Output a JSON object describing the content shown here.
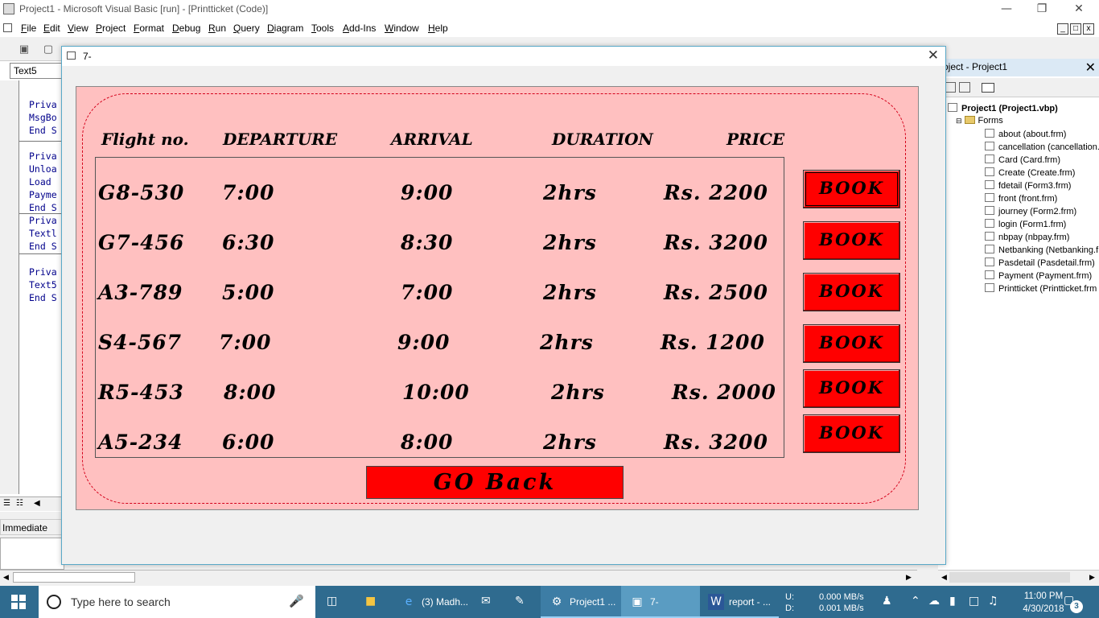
{
  "ide": {
    "title": "Project1 - Microsoft Visual Basic [run] - [Printticket (Code)]",
    "menu": [
      "File",
      "Edit",
      "View",
      "Project",
      "Format",
      "Debug",
      "Run",
      "Query",
      "Diagram",
      "Tools",
      "Add-Ins",
      "Window",
      "Help"
    ],
    "code_object_combo": "Text5",
    "code_lines": [
      "Priva",
      "MsgBo",
      "End S",
      "Priva",
      "Unloa",
      "Load",
      "Payme",
      "End S",
      "Priva",
      "Textl",
      "End S",
      "Priva",
      "Text5",
      "End S"
    ],
    "immediate_label": "Immediate"
  },
  "project_explorer": {
    "title": "oject - Project1",
    "root": "Project1 (Project1.vbp)",
    "folder": "Forms",
    "forms": [
      "about (about.frm)",
      "cancellation (cancellation.",
      "Card (Card.frm)",
      "Create (Create.frm)",
      "fdetail (Form3.frm)",
      "front (front.frm)",
      "journey (Form2.frm)",
      "login (Form1.frm)",
      "nbpay (nbpay.frm)",
      "Netbanking (Netbanking.f",
      "Pasdetail (Pasdetail.frm)",
      "Payment (Payment.frm)",
      "Printticket (Printticket.frm"
    ]
  },
  "form": {
    "title": "7-",
    "headers": {
      "flight": "Flight no.",
      "departure": "DEPARTURE",
      "arrival": "ARRIVAL",
      "duration": "DURATION",
      "price": "PRICE"
    },
    "flights": [
      {
        "no": "G8-530",
        "dep": "7:00",
        "arr": "9:00",
        "dur": "2hrs",
        "price": "Rs. 2200"
      },
      {
        "no": "G7-456",
        "dep": "6:30",
        "arr": "8:30",
        "dur": "2hrs",
        "price": "Rs. 3200"
      },
      {
        "no": "A3-789",
        "dep": "5:00",
        "arr": "7:00",
        "dur": "2hrs",
        "price": "Rs. 2500"
      },
      {
        "no": "S4-567",
        "dep": "7:00",
        "arr": "9:00",
        "dur": "2hrs",
        "price": "Rs. 1200"
      },
      {
        "no": "R5-453",
        "dep": "8:00",
        "arr": "10:00",
        "dur": "2hrs",
        "price": "Rs. 2000"
      },
      {
        "no": "A5-234",
        "dep": "6:00",
        "arr": "8:00",
        "dur": "2hrs",
        "price": "Rs. 3200"
      }
    ],
    "book_label": "BOOK",
    "go_back_label": "GO Back",
    "colors": {
      "panel": "#ffc0c0",
      "button": "#ff0000",
      "dashed_border": "#d4001a"
    }
  },
  "taskbar": {
    "search_placeholder": "Type here to search",
    "apps": [
      {
        "label": "(3) Madh...",
        "icon": "edge-icon"
      },
      {
        "label": "Project1 ...",
        "icon": "vb-icon"
      },
      {
        "label": "7-",
        "icon": "form-icon"
      },
      {
        "label": "report - ...",
        "icon": "word-icon"
      }
    ],
    "net_drives": "U:\nD:",
    "net_up": "0.000 MB/s",
    "net_down": "0.001 MB/s",
    "time": "11:00 PM",
    "date": "4/30/2018",
    "notifications": "3"
  }
}
